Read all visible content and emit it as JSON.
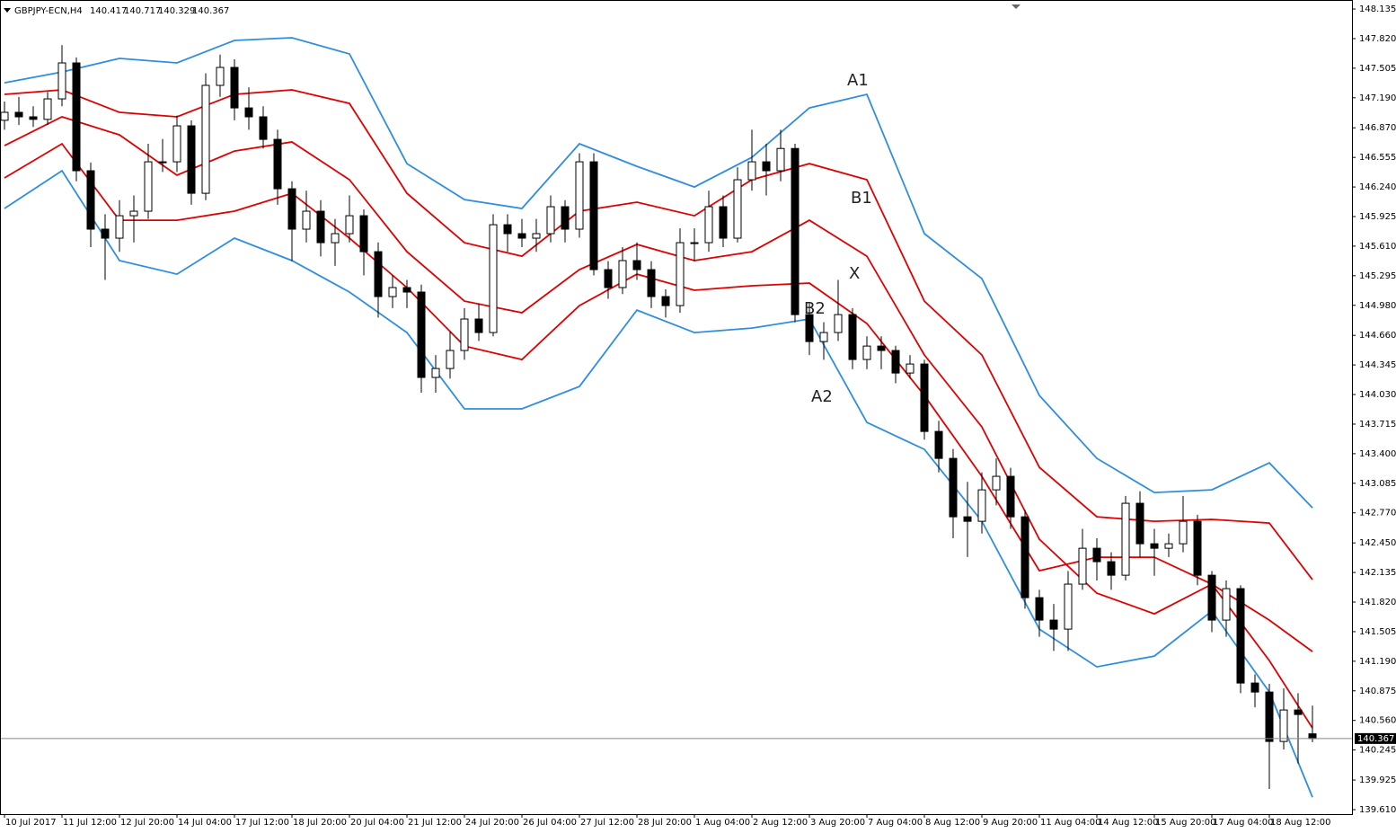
{
  "chart_data": {
    "type": "candlestick",
    "title": "GBPJPY-ECN,H4",
    "xlim": [
      -0.3125,
      93.75
    ],
    "ylim": [
      139.562,
      148.231
    ],
    "xticks": [
      {
        "value": 0,
        "label": "10 Jul 2017"
      },
      {
        "value": 4,
        "label": "11 Jul 12:00"
      },
      {
        "value": 8,
        "label": "12 Jul 20:00"
      },
      {
        "value": 12,
        "label": "14 Jul 04:00"
      },
      {
        "value": 16,
        "label": "17 Jul 12:00"
      },
      {
        "value": 20,
        "label": "18 Jul 20:00"
      },
      {
        "value": 24,
        "label": "20 Jul 04:00"
      },
      {
        "value": 28,
        "label": "21 Jul 12:00"
      },
      {
        "value": 32,
        "label": "24 Jul 20:00"
      },
      {
        "value": 36,
        "label": "26 Jul 04:00"
      },
      {
        "value": 40,
        "label": "27 Jul 12:00"
      },
      {
        "value": 44,
        "label": "28 Jul 20:00"
      },
      {
        "value": 48,
        "label": "1 Aug 04:00"
      },
      {
        "value": 52,
        "label": "2 Aug 12:00"
      },
      {
        "value": 56,
        "label": "3 Aug 20:00"
      },
      {
        "value": 60,
        "label": "7 Aug 04:00"
      },
      {
        "value": 64,
        "label": "8 Aug 12:00"
      },
      {
        "value": 68,
        "label": "9 Aug 20:00"
      },
      {
        "value": 72,
        "label": "11 Aug 04:00"
      },
      {
        "value": 76,
        "label": "14 Aug 12:00"
      },
      {
        "value": 80,
        "label": "15 Aug 20:00"
      },
      {
        "value": 84,
        "label": "17 Aug 04:00"
      },
      {
        "value": 88,
        "label": "18 Aug 12:00"
      }
    ],
    "yticks": [
      148.135,
      {
        "value": 147.82,
        "label": "147.820"
      },
      147.505,
      {
        "value": 147.19,
        "label": "147.190"
      },
      {
        "value": 146.87,
        "label": "146.870"
      },
      146.555,
      {
        "value": 146.24,
        "label": "146.240"
      },
      145.925,
      {
        "value": 145.61,
        "label": "145.610"
      },
      145.295,
      {
        "value": 144.98,
        "label": "144.980"
      },
      {
        "value": 144.66,
        "label": "144.660"
      },
      144.345,
      {
        "value": 144.03,
        "label": "144.030"
      },
      143.715,
      {
        "value": 143.4,
        "label": "143.400"
      },
      143.085,
      {
        "value": 142.77,
        "label": "142.770"
      },
      {
        "value": 142.45,
        "label": "142.450"
      },
      142.135,
      {
        "value": 141.82,
        "label": "141.820"
      },
      141.505,
      {
        "value": 141.19,
        "label": "141.190"
      },
      140.875,
      {
        "value": 140.56,
        "label": "140.560"
      },
      140.245,
      139.925,
      {
        "value": 139.61,
        "label": "139.610"
      }
    ],
    "up_color": "#ffffff",
    "down_color": "#000000",
    "candles": [
      [
        146.95,
        147.15,
        146.85,
        147.035
      ],
      [
        147.035,
        147.2,
        146.9,
        146.987
      ],
      [
        146.987,
        147.1,
        146.88,
        146.96
      ],
      [
        146.96,
        147.25,
        146.9,
        147.178
      ],
      [
        147.178,
        147.75,
        147.1,
        147.561
      ],
      [
        147.561,
        147.62,
        146.3,
        146.413
      ],
      [
        146.413,
        146.5,
        145.6,
        145.791
      ],
      [
        145.791,
        145.95,
        145.25,
        145.695
      ],
      [
        145.695,
        146.1,
        145.55,
        145.934
      ],
      [
        145.934,
        146.15,
        145.65,
        145.982
      ],
      [
        145.982,
        146.7,
        145.9,
        146.508
      ],
      [
        146.508,
        146.75,
        146.4,
        146.508
      ],
      [
        146.508,
        147.0,
        146.4,
        146.891
      ],
      [
        146.891,
        146.95,
        146.05,
        146.173
      ],
      [
        146.173,
        147.45,
        146.1,
        147.322
      ],
      [
        147.322,
        147.65,
        147.2,
        147.513
      ],
      [
        147.513,
        147.6,
        146.95,
        147.082
      ],
      [
        147.082,
        147.3,
        146.85,
        146.987
      ],
      [
        146.987,
        147.1,
        146.65,
        146.747
      ],
      [
        146.747,
        146.85,
        146.05,
        146.221
      ],
      [
        146.221,
        146.3,
        145.45,
        145.791
      ],
      [
        145.791,
        146.2,
        145.65,
        145.982
      ],
      [
        145.982,
        146.1,
        145.5,
        145.647
      ],
      [
        145.647,
        145.9,
        145.4,
        145.743
      ],
      [
        145.743,
        146.15,
        145.65,
        145.934
      ],
      [
        145.934,
        146.0,
        145.3,
        145.551
      ],
      [
        145.551,
        145.65,
        144.85,
        145.073
      ],
      [
        145.073,
        145.3,
        144.95,
        145.169
      ],
      [
        145.169,
        145.25,
        144.95,
        145.121
      ],
      [
        145.121,
        145.2,
        144.05,
        144.212
      ],
      [
        144.212,
        144.45,
        144.05,
        144.307
      ],
      [
        144.307,
        144.7,
        144.2,
        144.499
      ],
      [
        144.499,
        144.95,
        144.4,
        144.834
      ],
      [
        144.834,
        145.0,
        144.6,
        144.69
      ],
      [
        144.69,
        145.95,
        144.65,
        145.838
      ],
      [
        145.838,
        145.95,
        145.55,
        145.743
      ],
      [
        145.743,
        145.9,
        145.6,
        145.695
      ],
      [
        145.695,
        145.9,
        145.55,
        145.743
      ],
      [
        145.743,
        146.15,
        145.65,
        146.03
      ],
      [
        146.03,
        146.1,
        145.65,
        145.791
      ],
      [
        145.791,
        146.6,
        145.7,
        146.508
      ],
      [
        146.508,
        146.6,
        145.3,
        145.36
      ],
      [
        145.36,
        145.45,
        145.05,
        145.169
      ],
      [
        145.169,
        145.6,
        145.1,
        145.456
      ],
      [
        145.456,
        145.65,
        145.25,
        145.36
      ],
      [
        145.36,
        145.45,
        144.95,
        145.073
      ],
      [
        145.073,
        145.15,
        144.85,
        144.977
      ],
      [
        144.977,
        145.8,
        144.9,
        145.647
      ],
      [
        145.647,
        145.8,
        145.45,
        145.647
      ],
      [
        145.647,
        146.2,
        145.55,
        146.03
      ],
      [
        146.03,
        146.15,
        145.6,
        145.695
      ],
      [
        145.695,
        146.45,
        145.65,
        146.317
      ],
      [
        146.317,
        146.85,
        146.2,
        146.508
      ],
      [
        146.508,
        146.7,
        146.15,
        146.413
      ],
      [
        146.413,
        146.85,
        146.3,
        146.65
      ],
      [
        146.65,
        146.7,
        144.8,
        144.881
      ],
      [
        144.881,
        145.0,
        144.45,
        144.594
      ],
      [
        144.594,
        144.8,
        144.4,
        144.69
      ],
      [
        144.69,
        145.25,
        144.6,
        144.881
      ],
      [
        144.881,
        144.95,
        144.3,
        144.403
      ],
      [
        144.403,
        144.65,
        144.3,
        144.546
      ],
      [
        144.546,
        144.65,
        144.3,
        144.499
      ],
      [
        144.499,
        144.55,
        144.15,
        144.259
      ],
      [
        144.259,
        144.45,
        144.2,
        144.355
      ],
      [
        144.355,
        144.4,
        143.55,
        143.637
      ],
      [
        143.637,
        143.75,
        143.2,
        143.35
      ],
      [
        143.35,
        143.45,
        142.5,
        142.728
      ],
      [
        142.728,
        143.1,
        142.3,
        142.68
      ],
      [
        142.68,
        143.2,
        142.55,
        143.015
      ],
      [
        143.015,
        143.35,
        142.85,
        143.159
      ],
      [
        143.159,
        143.25,
        142.6,
        142.728
      ],
      [
        142.728,
        142.8,
        141.75,
        141.867
      ],
      [
        141.867,
        141.95,
        141.45,
        141.628
      ],
      [
        141.628,
        141.8,
        141.3,
        141.532
      ],
      [
        141.532,
        142.15,
        141.3,
        142.011
      ],
      [
        142.011,
        142.6,
        141.95,
        142.393
      ],
      [
        142.393,
        142.5,
        142.05,
        142.25
      ],
      [
        142.25,
        142.35,
        141.95,
        142.106
      ],
      [
        142.106,
        142.95,
        142.05,
        142.872
      ],
      [
        142.872,
        143.0,
        142.3,
        142.441
      ],
      [
        142.441,
        142.6,
        142.1,
        142.393
      ],
      [
        142.393,
        142.55,
        142.3,
        142.441
      ],
      [
        142.441,
        142.95,
        142.35,
        142.68
      ],
      [
        142.68,
        142.75,
        142.0,
        142.106
      ],
      [
        142.106,
        142.15,
        141.5,
        141.628
      ],
      [
        141.628,
        142.05,
        141.45,
        141.963
      ],
      [
        141.963,
        142.0,
        140.85,
        140.958
      ],
      [
        140.958,
        141.05,
        140.7,
        140.862
      ],
      [
        140.862,
        140.95,
        139.83,
        140.336
      ],
      [
        140.336,
        140.9,
        140.25,
        140.671
      ],
      [
        140.671,
        140.85,
        140.1,
        140.623
      ],
      [
        140.417,
        140.717,
        140.329,
        140.367
      ]
    ],
    "series": [
      {
        "color": "#2f8ee0",
        "x": [
          0,
          4,
          8,
          12,
          16,
          20,
          24,
          28,
          32,
          36,
          40,
          44,
          48,
          52,
          56,
          60,
          64,
          68,
          72,
          76,
          80,
          84,
          88,
          91
        ],
        "values": [
          147.35,
          147.465,
          147.609,
          147.561,
          147.8,
          147.829,
          147.657,
          146.489,
          146.106,
          146.011,
          146.7,
          146.46,
          146.24,
          146.556,
          147.082,
          147.226,
          145.743,
          145.264,
          144.02,
          143.35,
          142.987,
          143.015,
          143.302,
          142.824
        ]
      },
      {
        "color": "#e00000",
        "x": [
          0,
          4,
          8,
          12,
          16,
          20,
          24,
          28,
          32,
          36,
          40,
          44,
          48,
          52,
          56,
          60,
          64,
          68,
          72,
          76,
          80,
          84,
          88,
          91
        ],
        "values": [
          147.226,
          147.274,
          147.035,
          146.987,
          147.226,
          147.274,
          147.13,
          146.173,
          145.647,
          145.503,
          145.982,
          146.078,
          145.934,
          146.317,
          146.489,
          146.317,
          145.025,
          144.451,
          143.255,
          142.728,
          142.68,
          142.7,
          142.661,
          142.058
        ]
      },
      {
        "color": "#e00000",
        "x": [
          0,
          4,
          8,
          12,
          16,
          20,
          24,
          28,
          32,
          36,
          40,
          44,
          48,
          52,
          56,
          60,
          64,
          68,
          72,
          76,
          80,
          84,
          88,
          91
        ],
        "values": [
          146.68,
          146.987,
          146.795,
          146.365,
          146.623,
          146.719,
          146.317,
          145.551,
          145.025,
          144.901,
          145.36,
          145.628,
          145.456,
          145.551,
          145.886,
          145.503,
          144.451,
          143.685,
          142.489,
          141.915,
          141.695,
          142.011,
          141.628,
          141.293
        ]
      },
      {
        "color": "#e00000",
        "x": [
          0,
          4,
          8,
          12,
          16,
          20,
          24,
          28,
          32,
          36,
          40,
          44,
          48,
          52,
          56,
          60,
          64,
          68,
          72,
          76,
          80,
          84,
          88,
          91
        ],
        "values": [
          146.336,
          146.7,
          145.886,
          145.886,
          145.982,
          146.173,
          145.695,
          145.168,
          144.546,
          144.403,
          144.977,
          145.312,
          145.14,
          145.188,
          145.216,
          144.786,
          144.02,
          143.159,
          142.154,
          142.298,
          142.298,
          142.011,
          141.197,
          140.479
        ]
      },
      {
        "color": "#2f8ee0",
        "x": [
          0,
          4,
          8,
          12,
          16,
          20,
          24,
          28,
          32,
          36,
          40,
          44,
          48,
          52,
          56,
          60,
          64,
          68,
          72,
          76,
          80,
          84,
          88,
          91
        ],
        "values": [
          146.011,
          146.413,
          145.456,
          145.312,
          145.695,
          145.456,
          145.121,
          144.69,
          143.877,
          143.877,
          144.116,
          144.929,
          144.69,
          144.738,
          144.834,
          143.733,
          143.446,
          142.68,
          141.532,
          141.13,
          141.245,
          141.724,
          140.862,
          139.743
        ]
      }
    ],
    "annotations": [
      "A1",
      "B1",
      "X",
      "B2",
      "A2"
    ]
  }
}
